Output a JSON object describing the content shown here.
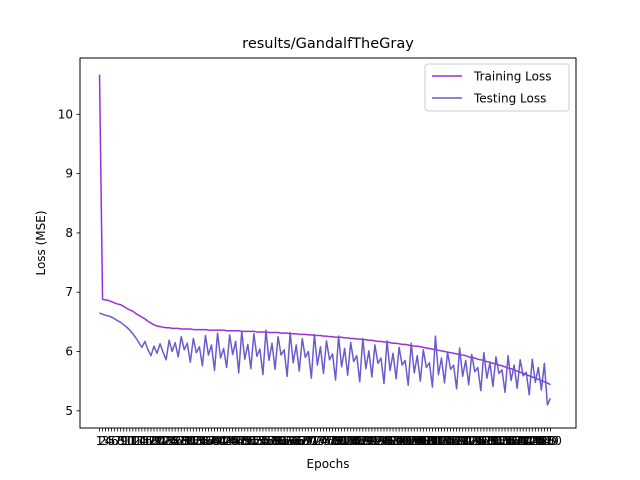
{
  "chart_data": {
    "type": "line",
    "title": "results/GandalfTheGray",
    "xlabel": "Epochs",
    "ylabel": "Loss (MSE)",
    "x_tick_label_first": "1",
    "x_tick_label_last": "150",
    "y_ticks": [
      5,
      6,
      7,
      8,
      9,
      10
    ],
    "ylim": [
      4.71,
      10.95
    ],
    "xlim": [
      -6.45,
      157.45
    ],
    "legend_position": "top-right",
    "grid": false,
    "series": [
      {
        "name": "Training Loss",
        "color": "#9b30d9",
        "values": [
          10.67,
          6.88,
          6.87,
          6.86,
          6.84,
          6.82,
          6.8,
          6.79,
          6.76,
          6.73,
          6.7,
          6.68,
          6.64,
          6.61,
          6.58,
          6.55,
          6.51,
          6.48,
          6.45,
          6.43,
          6.42,
          6.41,
          6.4,
          6.4,
          6.39,
          6.39,
          6.39,
          6.38,
          6.38,
          6.38,
          6.38,
          6.37,
          6.37,
          6.37,
          6.37,
          6.37,
          6.36,
          6.36,
          6.36,
          6.36,
          6.36,
          6.36,
          6.35,
          6.35,
          6.35,
          6.35,
          6.35,
          6.34,
          6.34,
          6.34,
          6.34,
          6.34,
          6.33,
          6.33,
          6.33,
          6.33,
          6.32,
          6.32,
          6.32,
          6.32,
          6.31,
          6.31,
          6.31,
          6.3,
          6.3,
          6.3,
          6.29,
          6.29,
          6.29,
          6.28,
          6.28,
          6.27,
          6.27,
          6.27,
          6.26,
          6.26,
          6.25,
          6.25,
          6.24,
          6.24,
          6.24,
          6.23,
          6.23,
          6.22,
          6.22,
          6.21,
          6.21,
          6.2,
          6.2,
          6.19,
          6.19,
          6.18,
          6.17,
          6.17,
          6.16,
          6.16,
          6.15,
          6.14,
          6.14,
          6.13,
          6.12,
          6.12,
          6.11,
          6.1,
          6.09,
          6.09,
          6.08,
          6.07,
          6.06,
          6.05,
          6.04,
          6.03,
          6.02,
          6.01,
          6.0,
          5.99,
          5.98,
          5.97,
          5.96,
          5.95,
          5.94,
          5.93,
          5.91,
          5.9,
          5.89,
          5.87,
          5.86,
          5.85,
          5.83,
          5.82,
          5.8,
          5.79,
          5.77,
          5.76,
          5.74,
          5.72,
          5.71,
          5.69,
          5.67,
          5.65,
          5.63,
          5.61,
          5.59,
          5.57,
          5.55,
          5.53,
          5.51,
          5.49,
          5.47,
          5.44
        ]
      },
      {
        "name": "Testing Loss",
        "color": "#6a5acd",
        "values": [
          6.65,
          6.63,
          6.61,
          6.6,
          6.58,
          6.55,
          6.52,
          6.49,
          6.45,
          6.41,
          6.36,
          6.3,
          6.23,
          6.15,
          6.07,
          6.17,
          6.03,
          5.93,
          6.09,
          5.97,
          6.13,
          5.99,
          5.86,
          6.19,
          6.0,
          6.15,
          5.91,
          6.25,
          6.03,
          6.14,
          5.82,
          6.22,
          5.98,
          6.08,
          5.76,
          6.27,
          5.94,
          6.11,
          5.68,
          6.31,
          5.89,
          6.05,
          5.73,
          6.28,
          5.95,
          6.17,
          5.64,
          6.34,
          5.87,
          6.12,
          5.71,
          6.3,
          5.92,
          6.04,
          5.61,
          6.36,
          5.85,
          6.14,
          5.7,
          6.25,
          5.94,
          6.03,
          5.58,
          6.32,
          5.81,
          6.11,
          5.67,
          6.22,
          5.9,
          6.0,
          5.55,
          6.29,
          5.77,
          6.08,
          5.63,
          6.18,
          5.86,
          5.96,
          5.52,
          6.26,
          5.74,
          6.05,
          5.6,
          6.15,
          5.83,
          5.93,
          5.49,
          6.22,
          5.71,
          6.01,
          5.57,
          6.11,
          5.8,
          5.89,
          5.46,
          6.18,
          5.68,
          5.97,
          5.54,
          6.07,
          5.77,
          5.85,
          5.43,
          6.14,
          5.64,
          5.93,
          5.5,
          6.03,
          5.73,
          5.81,
          5.4,
          6.26,
          5.61,
          5.89,
          5.47,
          5.99,
          5.7,
          5.77,
          5.37,
          6.06,
          5.58,
          5.85,
          5.44,
          5.95,
          5.66,
          5.73,
          5.34,
          5.98,
          5.55,
          5.81,
          5.41,
          5.91,
          5.63,
          5.69,
          5.31,
          5.93,
          5.51,
          5.77,
          5.38,
          5.86,
          5.59,
          5.65,
          5.27,
          5.87,
          5.48,
          5.73,
          5.35,
          5.8,
          5.1,
          5.21
        ]
      }
    ]
  }
}
